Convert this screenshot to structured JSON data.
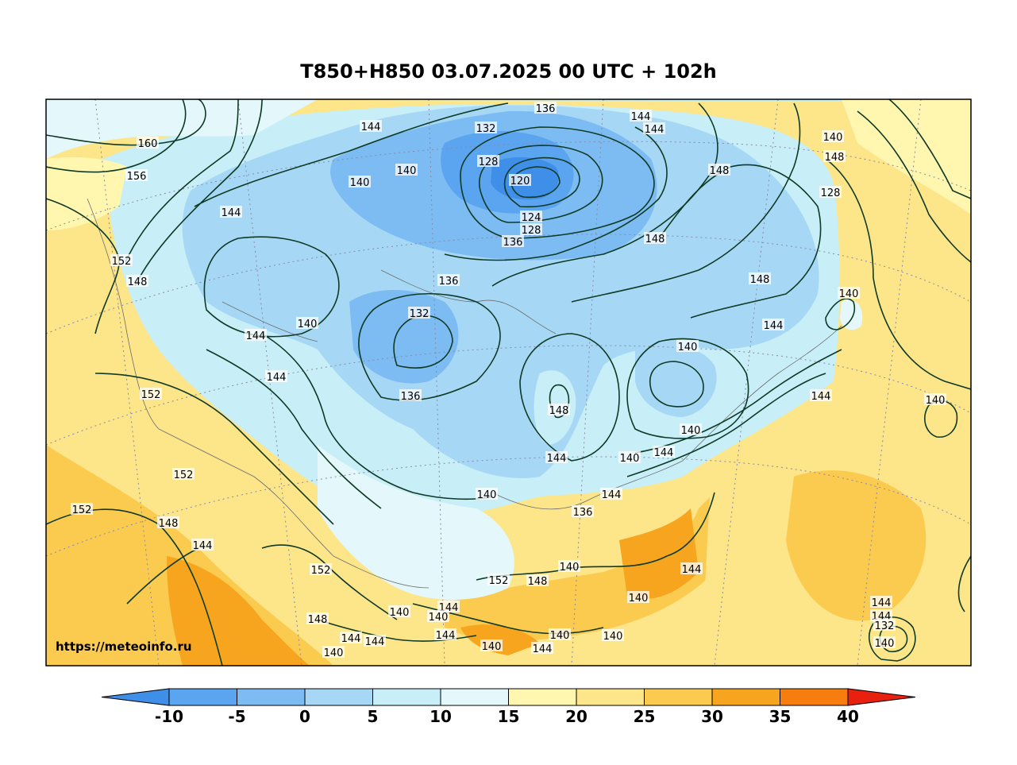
{
  "title": "T850+H850 03.07.2025 00 UTC + 102h",
  "watermark": "https://meteoinfo.ru",
  "colorbar": {
    "ticks": [
      "-10",
      "-5",
      "0",
      "5",
      "10",
      "15",
      "20",
      "25",
      "30",
      "35",
      "40"
    ],
    "colors": [
      "#3f8ee8",
      "#5ba4ef",
      "#7cbcf2",
      "#a6d8f6",
      "#c8eef8",
      "#e4f8fb",
      "#fff6b0",
      "#fde58a",
      "#fbcb50",
      "#f7a51e",
      "#f77d0e",
      "#f04a12",
      "#e8200e"
    ]
  },
  "contour_labels": [
    "160",
    "156",
    "152",
    "148",
    "144",
    "140",
    "136",
    "132",
    "128",
    "124",
    "120",
    "144",
    "144",
    "144",
    "140",
    "136",
    "132",
    "128",
    "148",
    "152",
    "152",
    "148",
    "144",
    "140",
    "136",
    "140",
    "148",
    "144",
    "140",
    "136",
    "148",
    "144",
    "140",
    "152",
    "148",
    "144",
    "140",
    "152",
    "148",
    "144",
    "140",
    "144",
    "144",
    "144",
    "140",
    "140",
    "144",
    "140",
    "140",
    "144",
    "140",
    "144",
    "144",
    "140",
    "132",
    "128",
    "140",
    "144",
    "148",
    "148",
    "140",
    "144",
    "144",
    "140",
    "136",
    "140",
    "140",
    "144",
    "152"
  ]
}
